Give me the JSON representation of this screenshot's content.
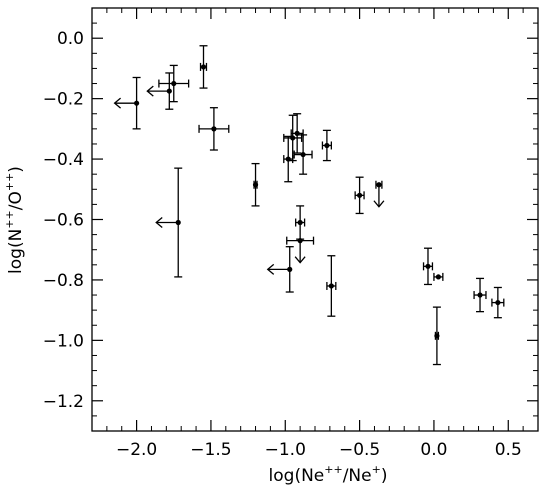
{
  "chart_data": {
    "type": "scatter",
    "title": "",
    "xlabel": {
      "base": "log(Ne",
      "sup1": "++",
      "mid": "/Ne",
      "sup2": "+",
      "end": ")"
    },
    "ylabel": {
      "base": "log(N",
      "sup1": "++",
      "mid": "/O",
      "sup2": "++",
      "end": ")"
    },
    "xlim": [
      -2.3,
      0.7
    ],
    "ylim": [
      -1.3,
      0.1
    ],
    "xticks": [
      -2.0,
      -1.5,
      -1.0,
      -0.5,
      0.0,
      0.5
    ],
    "xtick_labels": [
      "−2.0",
      "−1.5",
      "−1.0",
      "−0.5",
      "0.0",
      "0.5"
    ],
    "yticks": [
      0.0,
      -0.2,
      -0.4,
      -0.6,
      -0.8,
      -1.0,
      -1.2
    ],
    "ytick_labels": [
      "0.0",
      "−0.2",
      "−0.4",
      "−0.6",
      "−0.8",
      "−1.0",
      "−1.2"
    ],
    "grid": false,
    "points": [
      {
        "x": -2.0,
        "y": -0.215,
        "xerr": 0.0,
        "yerr": 0.085,
        "limit": "x-upper"
      },
      {
        "x": -1.78,
        "y": -0.175,
        "xerr": 0.0,
        "yerr": 0.06,
        "limit": "x-upper"
      },
      {
        "x": -1.75,
        "y": -0.15,
        "xerr": 0.1,
        "yerr": 0.06,
        "limit": null
      },
      {
        "x": -1.55,
        "y": -0.095,
        "xerr": 0.02,
        "yerr": 0.07,
        "limit": null
      },
      {
        "x": -1.48,
        "y": -0.3,
        "xerr": 0.1,
        "yerr": 0.07,
        "limit": null
      },
      {
        "x": -1.72,
        "y": -0.61,
        "xerr": 0.0,
        "yerr": 0.18,
        "limit": "x-upper"
      },
      {
        "x": -1.2,
        "y": -0.485,
        "xerr": 0.01,
        "yerr": 0.07,
        "limit": null
      },
      {
        "x": -0.98,
        "y": -0.4,
        "xerr": 0.03,
        "yerr": 0.075,
        "limit": null
      },
      {
        "x": -0.95,
        "y": -0.33,
        "xerr": 0.06,
        "yerr": 0.075,
        "limit": null
      },
      {
        "x": -0.92,
        "y": -0.315,
        "xerr": 0.04,
        "yerr": 0.065,
        "limit": null
      },
      {
        "x": -0.88,
        "y": -0.385,
        "xerr": 0.06,
        "yerr": 0.065,
        "limit": null
      },
      {
        "x": -0.9,
        "y": -0.61,
        "xerr": 0.03,
        "yerr": 0.055,
        "limit": null
      },
      {
        "x": -0.9,
        "y": -0.67,
        "xerr": 0.09,
        "yerr": 0.0,
        "limit": "y-upper"
      },
      {
        "x": -0.97,
        "y": -0.765,
        "xerr": 0.0,
        "yerr": 0.075,
        "limit": "x-upper"
      },
      {
        "x": -0.72,
        "y": -0.355,
        "xerr": 0.03,
        "yerr": 0.05,
        "limit": null
      },
      {
        "x": -0.69,
        "y": -0.82,
        "xerr": 0.03,
        "yerr": 0.1,
        "limit": null
      },
      {
        "x": -0.5,
        "y": -0.52,
        "xerr": 0.03,
        "yerr": 0.06,
        "limit": null
      },
      {
        "x": -0.37,
        "y": -0.485,
        "xerr": 0.02,
        "yerr": 0.0,
        "limit": "y-upper"
      },
      {
        "x": -0.04,
        "y": -0.755,
        "xerr": 0.03,
        "yerr": 0.06,
        "limit": null
      },
      {
        "x": 0.03,
        "y": -0.79,
        "xerr": 0.03,
        "yerr": 0.0,
        "limit": null
      },
      {
        "x": 0.02,
        "y": -0.985,
        "xerr": 0.01,
        "yerr": 0.095,
        "limit": null
      },
      {
        "x": 0.31,
        "y": -0.85,
        "xerr": 0.04,
        "yerr": 0.055,
        "limit": null
      },
      {
        "x": 0.43,
        "y": -0.875,
        "xerr": 0.04,
        "yerr": 0.05,
        "limit": null
      }
    ]
  }
}
